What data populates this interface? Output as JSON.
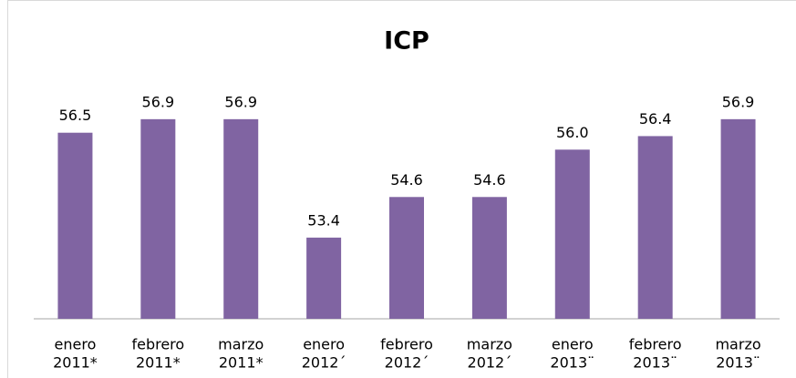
{
  "chart_data": {
    "type": "bar",
    "title": "ICP",
    "categories": [
      [
        "enero",
        "2011*"
      ],
      [
        "febrero",
        "2011*"
      ],
      [
        "marzo",
        "2011*"
      ],
      [
        "enero",
        "2012´"
      ],
      [
        "febrero",
        "2012´"
      ],
      [
        "marzo",
        "2012´"
      ],
      [
        "enero",
        "2013¨"
      ],
      [
        "febrero",
        "2013¨"
      ],
      [
        "marzo",
        "2013¨"
      ]
    ],
    "values": [
      56.5,
      56.9,
      56.9,
      53.4,
      54.6,
      54.6,
      56.0,
      56.4,
      56.9
    ],
    "value_labels": [
      "56.5",
      "56.9",
      "56.9",
      "53.4",
      "54.6",
      "54.6",
      "56.0",
      "56.4",
      "56.9"
    ],
    "color": "#8064a2",
    "ylim": [
      51,
      58
    ]
  }
}
